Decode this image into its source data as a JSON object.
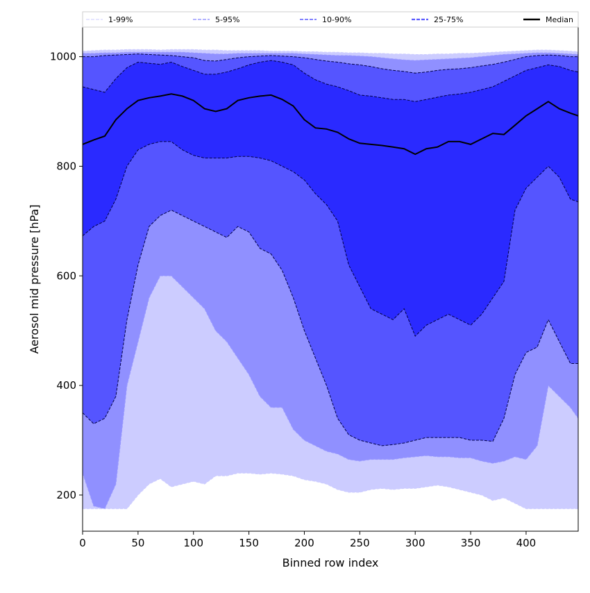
{
  "chart_data": {
    "type": "area",
    "title": "",
    "xlabel": "Binned row index",
    "ylabel": "Aerosol mid pressure [hPa]",
    "xlim": [
      0,
      447
    ],
    "ylim": [
      134,
      1054
    ],
    "xticks": [
      0,
      50,
      100,
      150,
      200,
      250,
      300,
      350,
      400
    ],
    "yticks": [
      200,
      400,
      600,
      800,
      1000
    ],
    "grid": false,
    "legend_placement": "top",
    "legend": [
      {
        "label": "1-99%",
        "color": "#ccccff",
        "style": "dashed"
      },
      {
        "label": "5-95%",
        "color": "#9999ff",
        "style": "dashed"
      },
      {
        "label": "10-90%",
        "color": "#6f6fff",
        "style": "dashed"
      },
      {
        "label": "25-75%",
        "color": "#5a5aff",
        "style": "dashed"
      },
      {
        "label": "Median",
        "color": "#000000",
        "style": "solid"
      }
    ],
    "x": [
      0,
      10,
      20,
      30,
      40,
      50,
      60,
      70,
      80,
      90,
      100,
      110,
      120,
      130,
      140,
      150,
      160,
      170,
      180,
      190,
      200,
      210,
      220,
      230,
      240,
      250,
      260,
      270,
      280,
      290,
      300,
      310,
      320,
      330,
      340,
      350,
      360,
      370,
      380,
      390,
      400,
      410,
      420,
      430,
      440,
      447
    ],
    "series": [
      {
        "name": "p1",
        "values": [
          175,
          175,
          175,
          175,
          175,
          200,
          220,
          230,
          215,
          220,
          225,
          220,
          235,
          235,
          240,
          240,
          238,
          240,
          238,
          235,
          228,
          225,
          220,
          210,
          205,
          205,
          210,
          212,
          210,
          212,
          212,
          215,
          218,
          215,
          210,
          205,
          200,
          190,
          195,
          185,
          175,
          175,
          175,
          175,
          175,
          175
        ]
      },
      {
        "name": "p99",
        "values": [
          1010,
          1011,
          1012,
          1012,
          1013,
          1013,
          1013,
          1012,
          1013,
          1013,
          1013,
          1012,
          1012,
          1011,
          1011,
          1011,
          1011,
          1010,
          1010,
          1010,
          1009,
          1009,
          1008,
          1008,
          1007,
          1007,
          1006,
          1006,
          1005,
          1005,
          1004,
          1004,
          1005,
          1005,
          1006,
          1006,
          1007,
          1008,
          1009,
          1010,
          1011,
          1012,
          1012,
          1011,
          1010,
          1009
        ]
      },
      {
        "name": "p5",
        "values": [
          240,
          180,
          175,
          220,
          400,
          480,
          560,
          600,
          600,
          580,
          560,
          540,
          500,
          480,
          450,
          420,
          380,
          360,
          360,
          320,
          300,
          290,
          280,
          275,
          265,
          262,
          265,
          265,
          265,
          268,
          270,
          272,
          270,
          270,
          268,
          268,
          262,
          258,
          262,
          270,
          265,
          290,
          400,
          380,
          360,
          340
        ]
      },
      {
        "name": "p95",
        "values": [
          1006,
          1006,
          1007,
          1007,
          1008,
          1008,
          1008,
          1008,
          1008,
          1008,
          1007,
          1006,
          1005,
          1005,
          1006,
          1006,
          1006,
          1006,
          1006,
          1006,
          1005,
          1004,
          1003,
          1002,
          1002,
          1001,
          1000,
          998,
          996,
          994,
          993,
          994,
          995,
          996,
          997,
          998,
          1000,
          1002,
          1004,
          1005,
          1006,
          1007,
          1007,
          1006,
          1005,
          1004
        ]
      },
      {
        "name": "p10",
        "values": [
          350,
          330,
          340,
          380,
          520,
          620,
          690,
          710,
          720,
          710,
          700,
          690,
          680,
          670,
          690,
          680,
          650,
          640,
          610,
          560,
          500,
          450,
          400,
          340,
          310,
          300,
          295,
          290,
          292,
          295,
          300,
          305,
          305,
          305,
          305,
          300,
          300,
          298,
          340,
          420,
          460,
          470,
          520,
          480,
          440,
          440
        ]
      },
      {
        "name": "p90",
        "values": [
          1000,
          1000,
          1002,
          1003,
          1004,
          1005,
          1004,
          1003,
          1002,
          1000,
          998,
          993,
          992,
          995,
          998,
          1000,
          1001,
          1002,
          1001,
          1000,
          998,
          995,
          992,
          990,
          987,
          985,
          982,
          978,
          975,
          973,
          970,
          972,
          975,
          977,
          978,
          980,
          983,
          986,
          990,
          995,
          1000,
          1002,
          1003,
          1002,
          1000,
          1000
        ]
      },
      {
        "name": "p25",
        "values": [
          673,
          690,
          700,
          740,
          800,
          830,
          840,
          845,
          845,
          830,
          820,
          815,
          815,
          815,
          818,
          818,
          815,
          810,
          800,
          790,
          775,
          750,
          730,
          700,
          620,
          580,
          540,
          530,
          520,
          540,
          490,
          510,
          520,
          530,
          520,
          510,
          530,
          560,
          590,
          720,
          760,
          780,
          800,
          780,
          740,
          735
        ]
      },
      {
        "name": "p75",
        "values": [
          945,
          940,
          935,
          960,
          980,
          990,
          988,
          986,
          990,
          982,
          975,
          968,
          968,
          972,
          978,
          985,
          990,
          993,
          990,
          985,
          970,
          958,
          950,
          945,
          938,
          930,
          928,
          925,
          922,
          922,
          918,
          922,
          926,
          930,
          932,
          935,
          940,
          945,
          955,
          965,
          975,
          980,
          985,
          982,
          975,
          972
        ]
      },
      {
        "name": "median",
        "values": [
          840,
          848,
          855,
          885,
          905,
          920,
          925,
          928,
          932,
          928,
          920,
          905,
          900,
          905,
          920,
          925,
          928,
          930,
          922,
          910,
          885,
          870,
          868,
          862,
          850,
          842,
          840,
          838,
          835,
          832,
          822,
          832,
          835,
          845,
          845,
          840,
          850,
          860,
          858,
          875,
          892,
          905,
          918,
          905,
          897,
          892
        ]
      }
    ],
    "band_colors": {
      "1-99": "#ccccff",
      "5-95": "#9090ff",
      "10-90": "#5555ff",
      "25-75": "#2a2aff"
    }
  }
}
